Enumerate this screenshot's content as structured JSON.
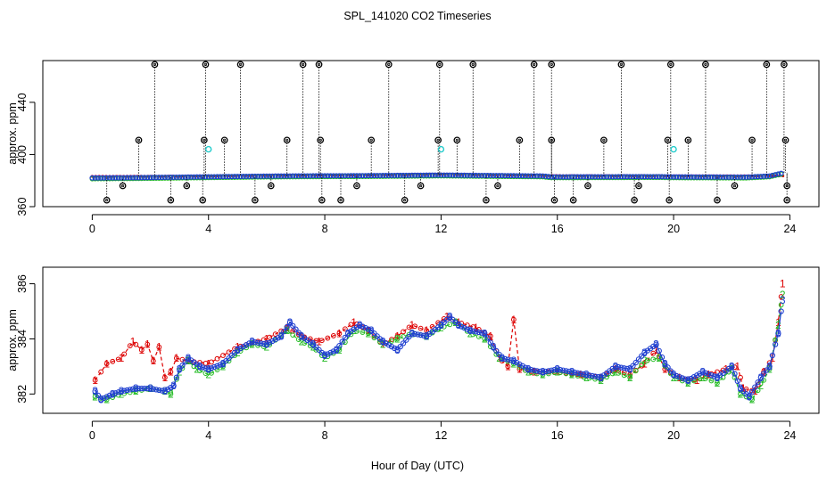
{
  "chart_data": {
    "title": "SPL_141020  CO2 Timeseries",
    "xlabel": "Hour of Day (UTC)",
    "colors": {
      "series1": "#dd0000",
      "series2": "#22bb22",
      "series3": "#1f3fd0",
      "flag": "#000000",
      "cyan": "#22cccc"
    },
    "panels": [
      {
        "type": "scatter",
        "name": "top",
        "ylabel": "approx. ppm",
        "xlim": [
          -1.7,
          25.0
        ],
        "ylim": [
          360,
          472
        ],
        "xticks": [
          0,
          4,
          8,
          12,
          16,
          20,
          24
        ],
        "xtick_labels": [
          "0",
          "4",
          "8",
          "12",
          "16",
          "20",
          "24"
        ],
        "yticks": [
          360,
          400,
          440
        ],
        "ytick_labels": [
          "360",
          "400",
          "440"
        ],
        "baseline_segments": [
          [
            0.0,
            382.0
          ],
          [
            1.5,
            382.2
          ],
          [
            3.0,
            382.6
          ],
          [
            6.0,
            383.4
          ],
          [
            7.5,
            383.6
          ],
          [
            9.0,
            383.7
          ],
          [
            12.0,
            384.2
          ],
          [
            13.0,
            384.0
          ],
          [
            15.5,
            383.5
          ],
          [
            15.8,
            382.8
          ],
          [
            19.5,
            383.0
          ],
          [
            20.0,
            382.8
          ],
          [
            22.5,
            382.6
          ],
          [
            23.3,
            383.5
          ],
          [
            23.8,
            386.0
          ]
        ],
        "red_band": [
          [
            0.0,
            383.2
          ],
          [
            3.0,
            383.4
          ],
          [
            6.0,
            384.0
          ],
          [
            9.0,
            384.2
          ],
          [
            12.0,
            385.0
          ],
          [
            15.8,
            383.8
          ],
          [
            23.8,
            383.6
          ]
        ],
        "flags_high": [
          2.15,
          3.9,
          5.1,
          7.25,
          7.8,
          10.2,
          11.95,
          13.1,
          15.2,
          15.8,
          18.2,
          19.9,
          21.1,
          23.2,
          23.8
        ],
        "flags_mid": [
          1.6,
          3.85,
          4.55,
          6.7,
          7.85,
          9.6,
          11.9,
          12.55,
          14.7,
          15.8,
          17.6,
          19.8,
          20.5,
          22.7,
          23.85
        ],
        "flags_low_376": [
          1.05,
          3.25,
          6.15,
          9.1,
          11.3,
          13.95,
          17.05,
          18.8,
          22.1,
          23.9
        ],
        "flags_low_365": [
          0.5,
          2.7,
          3.8,
          5.6,
          7.9,
          8.55,
          10.75,
          13.55,
          15.9,
          16.55,
          18.65,
          19.85,
          21.5,
          23.9
        ],
        "flag_value_high": 469,
        "flag_value_mid": 411,
        "flag_value_low1": 376,
        "flag_value_low2": 365,
        "cyan_points": [
          [
            4.0,
            404
          ],
          [
            12.0,
            404
          ],
          [
            20.0,
            404
          ]
        ]
      },
      {
        "type": "line",
        "name": "bottom",
        "ylabel": "approx. ppm",
        "xlim": [
          -1.7,
          25.0
        ],
        "ylim": [
          381.3,
          386.6
        ],
        "xticks": [
          0,
          4,
          8,
          12,
          16,
          20,
          24
        ],
        "xtick_labels": [
          "0",
          "4",
          "8",
          "12",
          "16",
          "20",
          "24"
        ],
        "yticks": [
          382,
          384,
          386
        ],
        "ytick_labels": [
          "382",
          "384",
          "386"
        ],
        "series": [
          {
            "name": "1",
            "marker": "1",
            "points": [
              [
                0.1,
                382.5
              ],
              [
                0.5,
                383.1
              ],
              [
                1.0,
                383.3
              ],
              [
                1.4,
                383.9
              ],
              [
                1.7,
                383.6
              ],
              [
                1.9,
                383.8
              ],
              [
                2.1,
                383.2
              ],
              [
                2.3,
                383.7
              ],
              [
                2.5,
                382.6
              ],
              [
                2.7,
                382.8
              ],
              [
                2.9,
                383.3
              ],
              [
                3.3,
                383.2
              ],
              [
                4.0,
                383.1
              ],
              [
                5.0,
                383.7
              ],
              [
                6.0,
                384.0
              ],
              [
                6.7,
                384.4
              ],
              [
                7.2,
                384.1
              ],
              [
                7.8,
                383.9
              ],
              [
                8.5,
                384.2
              ],
              [
                9.0,
                384.6
              ],
              [
                9.5,
                384.3
              ],
              [
                10.0,
                383.8
              ],
              [
                10.5,
                384.1
              ],
              [
                11.0,
                384.5
              ],
              [
                11.5,
                384.3
              ],
              [
                12.2,
                384.8
              ],
              [
                12.6,
                384.6
              ],
              [
                13.2,
                384.4
              ],
              [
                13.7,
                384.1
              ],
              [
                14.0,
                383.3
              ],
              [
                14.3,
                383.0
              ],
              [
                14.5,
                384.7
              ],
              [
                14.7,
                382.9
              ],
              [
                15.2,
                382.8
              ],
              [
                16.0,
                382.8
              ],
              [
                16.8,
                382.7
              ],
              [
                17.5,
                382.6
              ],
              [
                18.0,
                382.9
              ],
              [
                18.5,
                382.7
              ],
              [
                19.0,
                383.1
              ],
              [
                19.4,
                383.6
              ],
              [
                19.7,
                382.9
              ],
              [
                20.2,
                382.6
              ],
              [
                20.8,
                382.5
              ],
              [
                21.2,
                382.7
              ],
              [
                21.8,
                382.9
              ],
              [
                22.2,
                383.0
              ],
              [
                22.4,
                382.2
              ],
              [
                22.8,
                382.1
              ],
              [
                23.1,
                382.8
              ],
              [
                23.4,
                383.3
              ],
              [
                23.6,
                384.6
              ],
              [
                23.75,
                386.0
              ]
            ]
          },
          {
            "name": "2",
            "marker": "2",
            "points": [
              [
                0.1,
                381.9
              ],
              [
                0.5,
                381.8
              ],
              [
                1.0,
                382.0
              ],
              [
                1.5,
                382.1
              ],
              [
                2.0,
                382.2
              ],
              [
                2.5,
                382.1
              ],
              [
                2.7,
                382.0
              ],
              [
                3.0,
                382.8
              ],
              [
                3.3,
                383.2
              ],
              [
                3.6,
                382.9
              ],
              [
                4.0,
                382.7
              ],
              [
                4.5,
                383.0
              ],
              [
                5.0,
                383.5
              ],
              [
                5.5,
                383.8
              ],
              [
                6.0,
                383.7
              ],
              [
                6.7,
                384.3
              ],
              [
                7.2,
                383.9
              ],
              [
                7.6,
                383.7
              ],
              [
                8.0,
                383.3
              ],
              [
                8.5,
                383.6
              ],
              [
                9.0,
                384.3
              ],
              [
                9.5,
                384.2
              ],
              [
                10.0,
                383.8
              ],
              [
                10.5,
                384.0
              ],
              [
                11.0,
                384.2
              ],
              [
                11.5,
                384.1
              ],
              [
                12.0,
                384.4
              ],
              [
                12.5,
                384.6
              ],
              [
                13.0,
                384.2
              ],
              [
                13.5,
                384.0
              ],
              [
                14.0,
                383.3
              ],
              [
                14.5,
                383.1
              ],
              [
                15.0,
                382.8
              ],
              [
                15.5,
                382.7
              ],
              [
                16.0,
                382.8
              ],
              [
                16.5,
                382.7
              ],
              [
                17.0,
                382.6
              ],
              [
                17.5,
                382.5
              ],
              [
                18.0,
                382.8
              ],
              [
                18.5,
                382.6
              ],
              [
                19.0,
                383.2
              ],
              [
                19.5,
                383.3
              ],
              [
                20.0,
                382.6
              ],
              [
                20.5,
                382.4
              ],
              [
                21.0,
                382.6
              ],
              [
                21.5,
                382.4
              ],
              [
                22.0,
                382.9
              ],
              [
                22.3,
                382.0
              ],
              [
                22.7,
                381.8
              ],
              [
                23.0,
                382.3
              ],
              [
                23.3,
                382.9
              ],
              [
                23.6,
                384.5
              ],
              [
                23.75,
                385.6
              ]
            ]
          },
          {
            "name": "3",
            "marker": "3",
            "points": [
              [
                0.1,
                382.1
              ],
              [
                0.3,
                381.8
              ],
              [
                0.7,
                382.0
              ],
              [
                1.0,
                382.1
              ],
              [
                1.5,
                382.2
              ],
              [
                2.0,
                382.2
              ],
              [
                2.5,
                382.1
              ],
              [
                2.8,
                382.3
              ],
              [
                3.0,
                382.9
              ],
              [
                3.3,
                383.3
              ],
              [
                3.7,
                383.0
              ],
              [
                4.0,
                382.9
              ],
              [
                4.5,
                383.1
              ],
              [
                5.0,
                383.6
              ],
              [
                5.5,
                383.9
              ],
              [
                6.0,
                383.8
              ],
              [
                6.5,
                384.1
              ],
              [
                6.8,
                384.6
              ],
              [
                7.2,
                384.1
              ],
              [
                7.6,
                383.8
              ],
              [
                8.0,
                383.4
              ],
              [
                8.4,
                383.6
              ],
              [
                8.8,
                384.2
              ],
              [
                9.2,
                384.5
              ],
              [
                9.6,
                384.3
              ],
              [
                10.0,
                383.9
              ],
              [
                10.5,
                383.6
              ],
              [
                11.0,
                384.2
              ],
              [
                11.5,
                384.1
              ],
              [
                12.0,
                384.5
              ],
              [
                12.3,
                384.8
              ],
              [
                12.6,
                384.5
              ],
              [
                13.0,
                384.3
              ],
              [
                13.5,
                384.2
              ],
              [
                13.8,
                383.7
              ],
              [
                14.1,
                383.3
              ],
              [
                14.5,
                383.2
              ],
              [
                15.0,
                382.9
              ],
              [
                15.5,
                382.8
              ],
              [
                16.0,
                382.9
              ],
              [
                16.5,
                382.8
              ],
              [
                17.0,
                382.7
              ],
              [
                17.5,
                382.6
              ],
              [
                18.0,
                383.0
              ],
              [
                18.5,
                382.9
              ],
              [
                19.0,
                383.5
              ],
              [
                19.4,
                383.8
              ],
              [
                19.7,
                383.1
              ],
              [
                20.0,
                382.7
              ],
              [
                20.5,
                382.5
              ],
              [
                21.0,
                382.8
              ],
              [
                21.5,
                382.6
              ],
              [
                22.0,
                383.0
              ],
              [
                22.3,
                382.2
              ],
              [
                22.6,
                381.9
              ],
              [
                23.0,
                382.6
              ],
              [
                23.3,
                383.0
              ],
              [
                23.6,
                384.2
              ],
              [
                23.75,
                385.4
              ]
            ]
          }
        ]
      }
    ]
  }
}
